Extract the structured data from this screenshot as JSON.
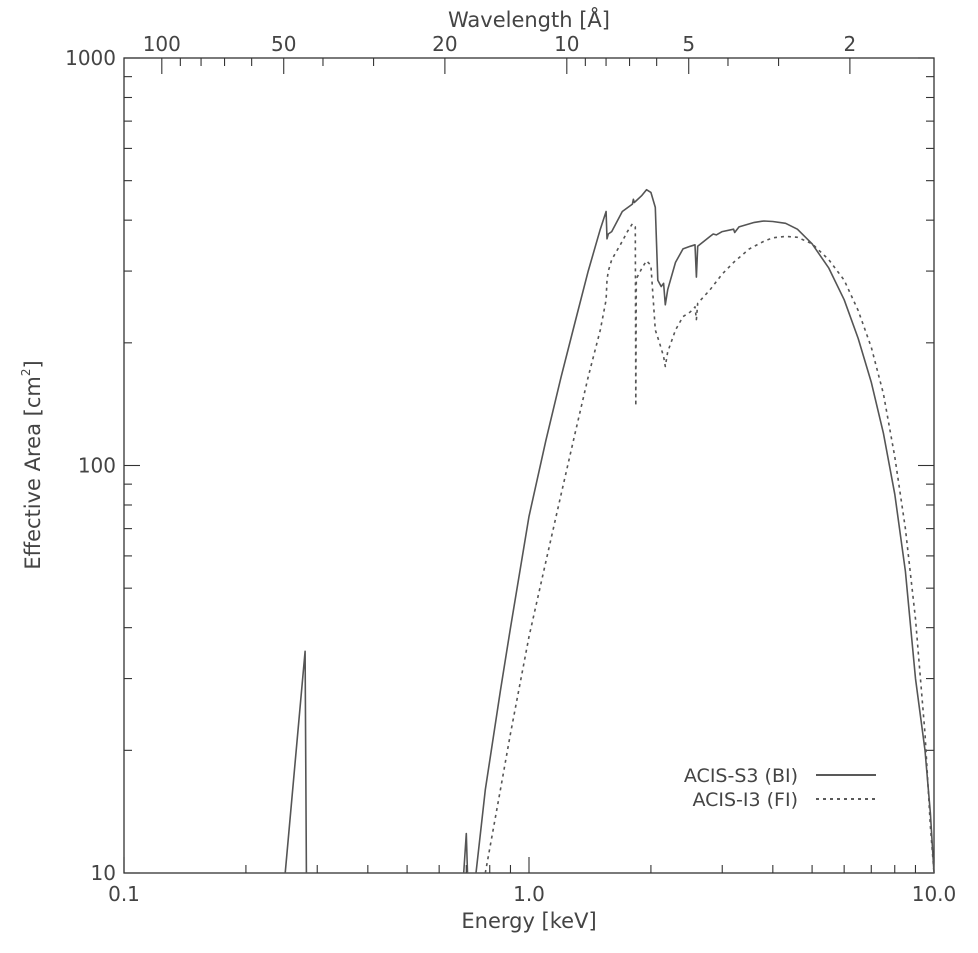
{
  "chart_data": {
    "type": "line",
    "xlabel": "Energy [keV]",
    "ylabel": "Effective Area [cm²]",
    "ylabel_main": "Effective Area [cm",
    "ylabel_sup": "2",
    "ylabel_close": "]",
    "top_axis_label": "Wavelength [Å]",
    "x_scale": "log",
    "y_scale": "log",
    "xlim": [
      0.1,
      10.0
    ],
    "ylim": [
      10,
      1000
    ],
    "x_tick_labels": [
      "0.1",
      "1.0",
      "10.0"
    ],
    "x_tick_values": [
      0.1,
      1.0,
      10.0
    ],
    "y_tick_labels": [
      "10",
      "100",
      "1000"
    ],
    "y_tick_values": [
      10,
      100,
      1000
    ],
    "top_tick_labels": [
      "100",
      "50",
      "20",
      "10",
      "5",
      "2"
    ],
    "top_tick_wavelengths": [
      100,
      50,
      20,
      10,
      5,
      2
    ],
    "top_minor_wavelengths": [
      90,
      80,
      70,
      60,
      40,
      30,
      9,
      8,
      7,
      6,
      4,
      3
    ],
    "grid": false,
    "legend_position": "bottom-right",
    "series": [
      {
        "name": "ACIS-S3 (BI)",
        "style": "solid",
        "color": "#555555",
        "segments": [
          [
            [
              0.25,
              10
            ],
            [
              0.28,
              35
            ],
            [
              0.282,
              10
            ]
          ],
          [
            [
              0.69,
              10
            ],
            [
              0.7,
              12.5
            ],
            [
              0.705,
              10
            ]
          ],
          [
            [
              0.74,
              10
            ],
            [
              0.78,
              16
            ],
            [
              0.85,
              28
            ],
            [
              0.9,
              40
            ],
            [
              1.0,
              75
            ],
            [
              1.1,
              115
            ],
            [
              1.2,
              165
            ],
            [
              1.3,
              225
            ],
            [
              1.4,
              300
            ],
            [
              1.5,
              380
            ],
            [
              1.55,
              420
            ],
            [
              1.558,
              360
            ],
            [
              1.57,
              370
            ],
            [
              1.6,
              375
            ],
            [
              1.7,
              420
            ],
            [
              1.8,
              438
            ],
            [
              1.81,
              450
            ],
            [
              1.82,
              442
            ],
            [
              1.9,
              460
            ],
            [
              1.95,
              475
            ],
            [
              2.0,
              468
            ],
            [
              2.05,
              430
            ],
            [
              2.08,
              285
            ],
            [
              2.12,
              275
            ],
            [
              2.15,
              280
            ],
            [
              2.17,
              248
            ],
            [
              2.2,
              270
            ],
            [
              2.3,
              315
            ],
            [
              2.4,
              340
            ],
            [
              2.5,
              345
            ],
            [
              2.57,
              348
            ],
            [
              2.59,
              290
            ],
            [
              2.61,
              345
            ],
            [
              2.8,
              365
            ],
            [
              2.85,
              370
            ],
            [
              2.9,
              368
            ],
            [
              3.0,
              375
            ],
            [
              3.2,
              380
            ],
            [
              3.22,
              373
            ],
            [
              3.3,
              385
            ],
            [
              3.6,
              395
            ],
            [
              3.8,
              398
            ],
            [
              4.0,
              397
            ],
            [
              4.3,
              393
            ],
            [
              4.6,
              380
            ],
            [
              5.0,
              350
            ],
            [
              5.5,
              305
            ],
            [
              6.0,
              255
            ],
            [
              6.5,
              205
            ],
            [
              7.0,
              160
            ],
            [
              7.5,
              120
            ],
            [
              8.0,
              85
            ],
            [
              8.5,
              55
            ],
            [
              9.0,
              30
            ],
            [
              9.5,
              20
            ],
            [
              9.8,
              14
            ],
            [
              10.0,
              10
            ]
          ]
        ]
      },
      {
        "name": "ACIS-I3 (FI)",
        "style": "dotted",
        "color": "#555555",
        "segments": [
          [
            [
              0.78,
              10
            ],
            [
              0.85,
              16
            ],
            [
              0.9,
              22
            ],
            [
              1.0,
              38
            ],
            [
              1.1,
              58
            ],
            [
              1.2,
              85
            ],
            [
              1.3,
              120
            ],
            [
              1.4,
              165
            ],
            [
              1.5,
              215
            ],
            [
              1.55,
              255
            ],
            [
              1.558,
              285
            ],
            [
              1.57,
              300
            ],
            [
              1.6,
              320
            ],
            [
              1.7,
              355
            ],
            [
              1.75,
              375
            ],
            [
              1.8,
              392
            ],
            [
              1.83,
              385
            ],
            [
              1.835,
              140
            ],
            [
              1.84,
              285
            ],
            [
              1.85,
              290
            ],
            [
              1.9,
              305
            ],
            [
              1.95,
              318
            ],
            [
              2.0,
              310
            ],
            [
              2.05,
              215
            ],
            [
              2.1,
              200
            ],
            [
              2.15,
              185
            ],
            [
              2.17,
              175
            ],
            [
              2.2,
              190
            ],
            [
              2.3,
              215
            ],
            [
              2.4,
              232
            ],
            [
              2.5,
              238
            ],
            [
              2.57,
              245
            ],
            [
              2.59,
              228
            ],
            [
              2.61,
              250
            ],
            [
              2.8,
              270
            ],
            [
              3.0,
              295
            ],
            [
              3.2,
              315
            ],
            [
              3.5,
              340
            ],
            [
              3.8,
              355
            ],
            [
              4.0,
              362
            ],
            [
              4.3,
              365
            ],
            [
              4.6,
              363
            ],
            [
              5.0,
              350
            ],
            [
              5.5,
              320
            ],
            [
              6.0,
              285
            ],
            [
              6.5,
              240
            ],
            [
              7.0,
              195
            ],
            [
              7.5,
              150
            ],
            [
              8.0,
              105
            ],
            [
              8.5,
              70
            ],
            [
              9.0,
              42
            ],
            [
              9.5,
              22
            ],
            [
              9.8,
              13
            ],
            [
              10.0,
              10
            ]
          ]
        ]
      }
    ]
  }
}
